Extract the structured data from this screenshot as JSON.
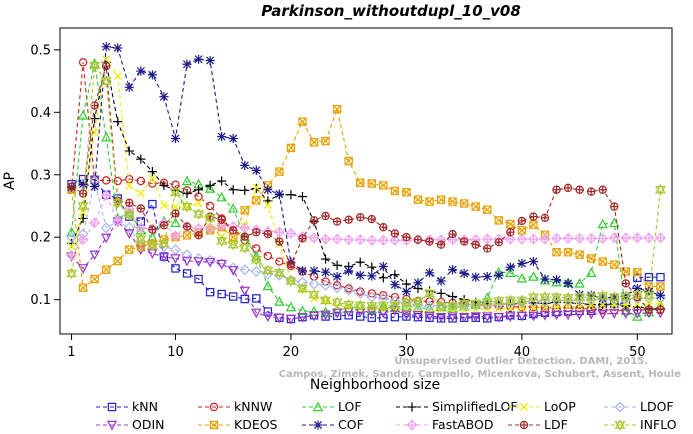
{
  "chart_data": {
    "type": "line",
    "title": "Parkinson_withoutdupl_10_v08",
    "xlabel": "Neighborhood size",
    "ylabel": "AP",
    "xlim": [
      0,
      53
    ],
    "ylim": [
      0.045,
      0.535
    ],
    "x_ticks": [
      1,
      10,
      20,
      30,
      40,
      50
    ],
    "y_ticks": [
      0.1,
      0.2,
      0.3,
      0.4,
      0.5
    ],
    "grid": false,
    "legend_position": "bottom",
    "credit": [
      "Campos, Zimek, Sander, Campello, Micenkova, Schubert, Assent, Houle",
      "Unsupervised Outlier Detection. DAMI, 2015."
    ],
    "x": [
      1,
      2,
      3,
      4,
      5,
      6,
      7,
      8,
      9,
      10,
      11,
      12,
      13,
      14,
      15,
      16,
      17,
      18,
      19,
      20,
      21,
      22,
      23,
      24,
      25,
      26,
      27,
      28,
      29,
      30,
      31,
      32,
      33,
      34,
      35,
      36,
      37,
      38,
      39,
      40,
      41,
      42,
      43,
      44,
      45,
      46,
      47,
      48,
      49,
      50,
      51,
      52
    ],
    "series": [
      {
        "name": "kNN",
        "color": "#1f1fcc",
        "dash": "4,3",
        "marker": "square",
        "values": [
          0.285,
          0.293,
          0.292,
          0.268,
          0.262,
          0.233,
          0.225,
          0.253,
          0.169,
          0.15,
          0.142,
          0.133,
          0.112,
          0.109,
          0.105,
          0.101,
          0.102,
          0.081,
          0.071,
          0.069,
          0.072,
          0.075,
          0.073,
          0.074,
          0.075,
          0.073,
          0.071,
          0.071,
          0.072,
          0.073,
          0.072,
          0.071,
          0.07,
          0.07,
          0.071,
          0.071,
          0.07,
          0.072,
          0.075,
          0.074,
          0.077,
          0.079,
          0.08,
          0.081,
          0.082,
          0.082,
          0.088,
          0.093,
          0.095,
          0.135,
          0.136,
          0.136
        ]
      },
      {
        "name": "kNNW",
        "color": "#cc2222",
        "dash": "4,3",
        "marker": "circle",
        "values": [
          0.276,
          0.48,
          0.291,
          0.291,
          0.29,
          0.293,
          0.29,
          0.286,
          0.287,
          0.284,
          0.275,
          0.265,
          0.25,
          0.23,
          0.211,
          0.195,
          0.182,
          0.17,
          0.161,
          0.154,
          0.145,
          0.137,
          0.129,
          0.123,
          0.118,
          0.113,
          0.11,
          0.107,
          0.104,
          0.101,
          0.098,
          0.097,
          0.096,
          0.095,
          0.094,
          0.092,
          0.091,
          0.09,
          0.089,
          0.088,
          0.088,
          0.087,
          0.087,
          0.087,
          0.086,
          0.085,
          0.084,
          0.083,
          0.082,
          0.083,
          0.084,
          0.084
        ]
      },
      {
        "name": "LOF",
        "color": "#33cc33",
        "dash": "4,3",
        "marker": "triangle-up",
        "values": [
          0.208,
          0.395,
          0.478,
          0.36,
          0.23,
          0.24,
          0.211,
          0.2,
          0.226,
          0.223,
          0.29,
          0.285,
          0.278,
          0.264,
          0.246,
          0.201,
          0.169,
          0.122,
          0.097,
          0.088,
          0.082,
          0.081,
          0.08,
          0.084,
          0.086,
          0.09,
          0.085,
          0.088,
          0.087,
          0.09,
          0.087,
          0.086,
          0.088,
          0.087,
          0.089,
          0.092,
          0.103,
          0.144,
          0.143,
          0.134,
          0.137,
          0.131,
          0.128,
          0.127,
          0.126,
          0.143,
          0.221,
          0.223,
          0.082,
          0.073,
          0.08,
          0.091
        ]
      },
      {
        "name": "SimplifiedLOF",
        "color": "#000000",
        "dash": "4,3",
        "marker": "plus",
        "values": [
          0.19,
          0.23,
          0.39,
          0.48,
          0.385,
          0.338,
          0.325,
          0.305,
          0.283,
          0.275,
          0.27,
          0.276,
          0.283,
          0.29,
          0.276,
          0.275,
          0.278,
          0.258,
          0.268,
          0.268,
          0.265,
          0.225,
          0.165,
          0.155,
          0.153,
          0.16,
          0.152,
          0.135,
          0.14,
          0.125,
          0.118,
          0.114,
          0.11,
          0.105,
          0.1,
          0.096,
          0.094,
          0.093,
          0.093,
          0.094,
          0.095,
          0.094,
          0.096,
          0.095,
          0.094,
          0.092,
          0.092,
          0.093,
          0.09,
          0.088,
          0.086,
          0.085
        ]
      },
      {
        "name": "LoOP",
        "color": "#eeee00",
        "dash": "4,3",
        "marker": "x",
        "values": [
          0.185,
          0.24,
          0.368,
          0.485,
          0.458,
          0.282,
          0.27,
          0.294,
          0.251,
          0.249,
          0.248,
          0.255,
          0.215,
          0.201,
          0.192,
          0.218,
          0.28,
          0.252,
          0.19,
          0.13,
          0.116,
          0.102,
          0.098,
          0.09,
          0.088,
          0.086,
          0.087,
          0.085,
          0.084,
          0.083,
          0.084,
          0.082,
          0.083,
          0.082,
          0.083,
          0.084,
          0.085,
          0.086,
          0.085,
          0.086,
          0.087,
          0.087,
          0.088,
          0.089,
          0.089,
          0.09,
          0.091,
          0.091,
          0.092,
          0.093,
          0.094,
          0.094
        ]
      },
      {
        "name": "LDOF",
        "color": "#aab4ee",
        "dash": "4,3",
        "marker": "diamond",
        "values": [
          0.2,
          0.205,
          0.29,
          0.215,
          0.225,
          0.215,
          0.188,
          0.19,
          0.185,
          0.18,
          0.172,
          0.166,
          0.163,
          0.158,
          0.151,
          0.148,
          0.145,
          0.141,
          0.139,
          0.131,
          0.128,
          0.125,
          0.123,
          0.119,
          0.115,
          0.11,
          0.104,
          0.102,
          0.098,
          0.094,
          0.091,
          0.09,
          0.09,
          0.09,
          0.091,
          0.092,
          0.093,
          0.093,
          0.095,
          0.096,
          0.097,
          0.098,
          0.099,
          0.099,
          0.1,
          0.1,
          0.101,
          0.101,
          0.102,
          0.102,
          0.103,
          0.103
        ]
      },
      {
        "name": "ODIN",
        "color": "#9933cc",
        "dash": "4,3",
        "marker": "triangle-down",
        "values": [
          0.169,
          0.15,
          0.172,
          0.199,
          0.225,
          0.206,
          0.18,
          0.174,
          0.168,
          0.166,
          0.162,
          0.161,
          0.16,
          0.157,
          0.147,
          0.114,
          0.079,
          0.073,
          0.071,
          0.069,
          0.072,
          0.074,
          0.076,
          0.079,
          0.081,
          0.08,
          0.081,
          0.079,
          0.083,
          0.076,
          0.075,
          0.074,
          0.072,
          0.073,
          0.072,
          0.073,
          0.073,
          0.072,
          0.073,
          0.074,
          0.074,
          0.075,
          0.076,
          0.076,
          0.076,
          0.077,
          0.077,
          0.078,
          0.078,
          0.078,
          0.079,
          0.079
        ]
      },
      {
        "name": "KDEOS",
        "color": "#e8a000",
        "dash": "4,3",
        "marker": "square-x",
        "values": [
          0.276,
          0.119,
          0.133,
          0.148,
          0.162,
          0.18,
          0.185,
          0.19,
          0.196,
          0.2,
          0.203,
          0.207,
          0.211,
          0.216,
          0.2,
          0.243,
          0.259,
          0.283,
          0.305,
          0.343,
          0.385,
          0.352,
          0.354,
          0.405,
          0.322,
          0.287,
          0.286,
          0.283,
          0.274,
          0.272,
          0.26,
          0.257,
          0.26,
          0.257,
          0.254,
          0.249,
          0.244,
          0.227,
          0.221,
          0.211,
          0.22,
          0.204,
          0.176,
          0.176,
          0.172,
          0.166,
          0.161,
          0.156,
          0.145,
          0.144,
          0.121,
          0.121
        ]
      },
      {
        "name": "COF",
        "color": "#1a1a88",
        "dash": "4,3",
        "marker": "asterisk",
        "values": [
          0.28,
          0.285,
          0.281,
          0.505,
          0.503,
          0.44,
          0.466,
          0.46,
          0.425,
          0.358,
          0.477,
          0.485,
          0.483,
          0.361,
          0.358,
          0.315,
          0.307,
          0.276,
          0.269,
          0.16,
          0.146,
          0.146,
          0.144,
          0.137,
          0.146,
          0.139,
          0.138,
          0.153,
          0.124,
          0.113,
          0.127,
          0.143,
          0.13,
          0.148,
          0.142,
          0.136,
          0.137,
          0.139,
          0.152,
          0.158,
          0.161,
          0.133,
          0.132,
          0.126,
          0.108,
          0.107,
          0.102,
          0.104,
          0.106,
          0.118,
          0.113,
          0.107
        ]
      },
      {
        "name": "FastABOD",
        "color": "#f0a0f0",
        "dash": "4,3",
        "marker": "diamond-plus",
        "values": [
          0.171,
          0.196,
          0.223,
          0.267,
          0.226,
          0.245,
          0.215,
          0.213,
          0.223,
          0.202,
          0.217,
          0.214,
          0.214,
          0.218,
          0.217,
          0.215,
          0.212,
          0.209,
          0.208,
          0.206,
          0.201,
          0.199,
          0.197,
          0.197,
          0.196,
          0.196,
          0.195,
          0.195,
          0.195,
          0.195,
          0.196,
          0.196,
          0.196,
          0.196,
          0.196,
          0.196,
          0.197,
          0.197,
          0.197,
          0.197,
          0.197,
          0.197,
          0.198,
          0.198,
          0.198,
          0.198,
          0.198,
          0.199,
          0.199,
          0.199,
          0.199,
          0.199
        ]
      },
      {
        "name": "LDF",
        "color": "#a32a2a",
        "dash": "4,3",
        "marker": "circle-plus",
        "values": [
          0.281,
          0.27,
          0.411,
          0.474,
          0.258,
          0.255,
          0.246,
          0.212,
          0.219,
          0.238,
          0.217,
          0.203,
          0.233,
          0.228,
          0.211,
          0.201,
          0.208,
          0.205,
          0.193,
          0.157,
          0.198,
          0.227,
          0.234,
          0.225,
          0.228,
          0.232,
          0.229,
          0.216,
          0.206,
          0.2,
          0.196,
          0.193,
          0.188,
          0.205,
          0.193,
          0.188,
          0.182,
          0.192,
          0.208,
          0.226,
          0.233,
          0.231,
          0.276,
          0.279,
          0.276,
          0.273,
          0.276,
          0.249,
          0.126,
          0.104,
          0.084,
          0.084
        ]
      },
      {
        "name": "INFLO",
        "color": "#aac832",
        "dash": "4,3",
        "marker": "star6",
        "values": [
          0.142,
          0.25,
          0.475,
          0.45,
          0.255,
          0.236,
          0.197,
          0.187,
          0.19,
          0.272,
          0.249,
          0.237,
          0.231,
          0.194,
          0.188,
          0.183,
          0.164,
          0.147,
          0.143,
          0.13,
          0.118,
          0.108,
          0.099,
          0.096,
          0.092,
          0.091,
          0.09,
          0.09,
          0.091,
          0.096,
          0.097,
          0.11,
          0.09,
          0.09,
          0.094,
          0.094,
          0.096,
          0.098,
          0.099,
          0.099,
          0.104,
          0.104,
          0.104,
          0.103,
          0.104,
          0.104,
          0.106,
          0.104,
          0.105,
          0.108,
          0.107,
          0.276
        ]
      }
    ]
  }
}
